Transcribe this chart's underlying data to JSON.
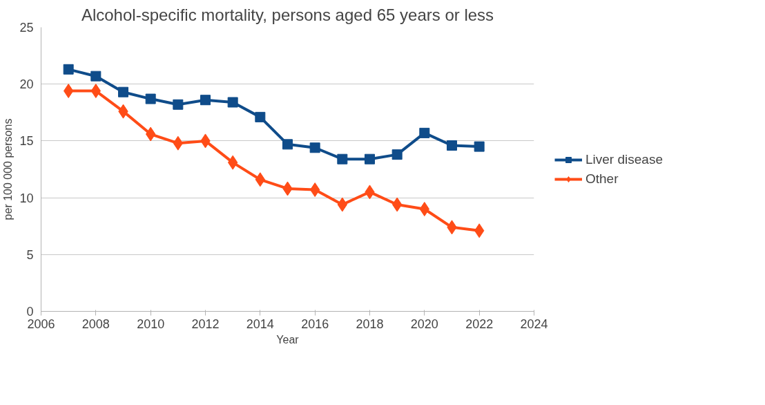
{
  "chart_data": {
    "type": "line",
    "title": "Alcohol-specific mortality, persons aged 65 years or less",
    "xlabel": "Year",
    "ylabel": "per 100 000 persons",
    "x": [
      2007,
      2008,
      2009,
      2010,
      2011,
      2012,
      2013,
      2014,
      2015,
      2016,
      2017,
      2018,
      2019,
      2020,
      2021,
      2022
    ],
    "series": [
      {
        "name": "Liver disease",
        "color": "#0f4c8a",
        "marker": "square",
        "values": [
          21.3,
          20.7,
          19.3,
          18.7,
          18.2,
          18.6,
          18.4,
          17.1,
          14.7,
          14.4,
          13.4,
          13.4,
          13.8,
          15.7,
          14.6,
          14.5
        ]
      },
      {
        "name": "Other",
        "color": "#ff4c17",
        "marker": "diamond",
        "values": [
          19.4,
          19.4,
          17.6,
          15.6,
          14.8,
          15.0,
          13.1,
          11.6,
          10.8,
          10.7,
          9.4,
          10.5,
          9.4,
          9.0,
          7.4,
          7.1
        ]
      }
    ],
    "xlim": [
      2006,
      2024
    ],
    "xticks": [
      2006,
      2008,
      2010,
      2012,
      2014,
      2016,
      2018,
      2020,
      2022,
      2024
    ],
    "ylim": [
      0,
      25
    ],
    "yticks": [
      0,
      5,
      10,
      15,
      20,
      25
    ],
    "grid": "y",
    "legend": "right",
    "line_style": "solid"
  }
}
